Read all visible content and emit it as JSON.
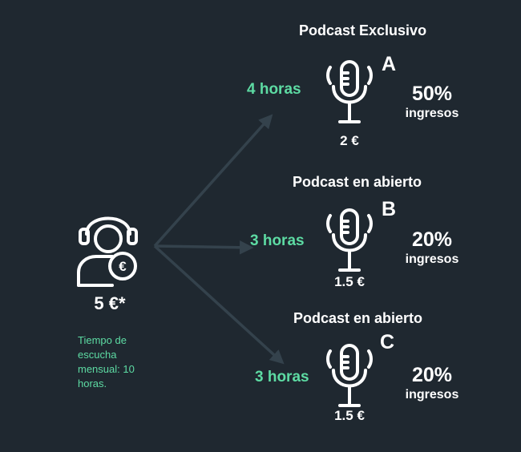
{
  "listener": {
    "icon": "headphones-user-euro-icon",
    "price": "5 €*",
    "note": "Tiempo de escucha mensual: 10 horas."
  },
  "podcasts": [
    {
      "title": "Podcast Exclusivo",
      "letter": "A",
      "hours": "4 horas",
      "price": "2 €",
      "share": "50%",
      "share_label": "ingresos"
    },
    {
      "title": "Podcast en abierto",
      "letter": "B",
      "hours": "3 horas",
      "price": "1.5 €",
      "share": "20%",
      "share_label": "ingresos"
    },
    {
      "title": "Podcast en abierto",
      "letter": "C",
      "hours": "3 horas",
      "price": "1.5 €",
      "share": "20%",
      "share_label": "ingresos"
    }
  ],
  "colors": {
    "background": "#1f2830",
    "accent": "#5ddba3",
    "arrow": "#34424c",
    "text": "#ffffff"
  }
}
